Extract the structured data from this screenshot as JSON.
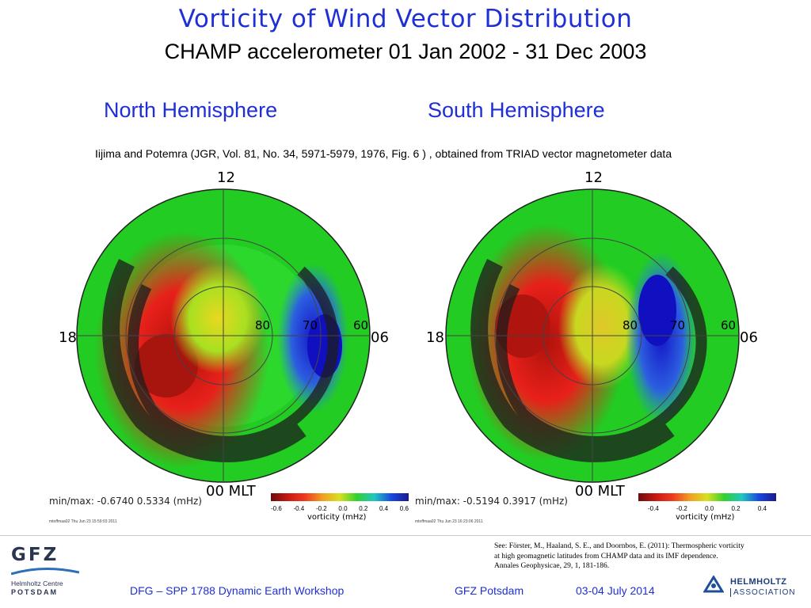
{
  "header": {
    "title": "Vorticity of Wind Vector Distribution",
    "subtitle": "CHAMP accelerometer  01 Jan 2002  - 31 Dec 2003"
  },
  "hemispheres": {
    "north": "North Hemisphere",
    "south": "South Hemisphere"
  },
  "source_note": "Iijima and Potemra  (JGR, Vol. 81, No. 34, 5971-5979, 1976, Fig. 6 ) ,  obtained from TRIAD vector magnetometer  data",
  "plots": [
    {
      "mlt_top": "12",
      "mlt_left": "18",
      "mlt_right": "06",
      "mlt_bottom": "00 MLT",
      "lat_labels": [
        "80",
        "70",
        "60"
      ],
      "minmax": "min/max:  -0.6740  0.5334 (mHz)",
      "stamp": "mtoffmaa02  Thu Jun 23 15:59:03 2011",
      "colorbar_ticks": [
        "-0.6",
        "-0.4",
        "-0.2",
        "0.0",
        "0.2",
        "0.4",
        "0.6"
      ],
      "colorbar_label": "vorticity (mHz)"
    },
    {
      "mlt_top": "12",
      "mlt_left": "18",
      "mlt_right": "06",
      "mlt_bottom": "00 MLT",
      "lat_labels": [
        "80",
        "70",
        "60"
      ],
      "minmax": "min/max:  -0.5194  0.3917 (mHz)",
      "stamp": "mtoffmaa02  Thu Jun 23 16:23:06 2011",
      "colorbar_ticks": [
        "-0.4",
        "-0.2",
        "0.0",
        "0.2",
        "0.4"
      ],
      "colorbar_label": "vorticity (mHz)"
    }
  ],
  "citation": {
    "line1": "See:  Förster, M., Haaland, S. E., and Doornbos, E. (2011): Thermospheric vorticity",
    "line2": "at high geomagnetic latitudes from CHAMP data and its IMF dependence.",
    "line3": "Annales Geophysicae, 29, 1, 181-186."
  },
  "footer": {
    "workshop": "DFG – SPP 1788  Dynamic Earth Workshop",
    "location": "GFZ Potsdam",
    "dates": "03-04 July  2014"
  },
  "logos": {
    "gfz_main": "GFZ",
    "gfz_line1": "Helmholtz Centre",
    "gfz_line2": "Potsdam",
    "helmholtz_line1": "HELMHOLTZ",
    "helmholtz_line2": "ASSOCIATION"
  },
  "colors": {
    "accent_blue": "#1f2fd6",
    "plot_green": "#22cc22",
    "plot_red": "#e01a10",
    "plot_blue": "#1822d8"
  }
}
